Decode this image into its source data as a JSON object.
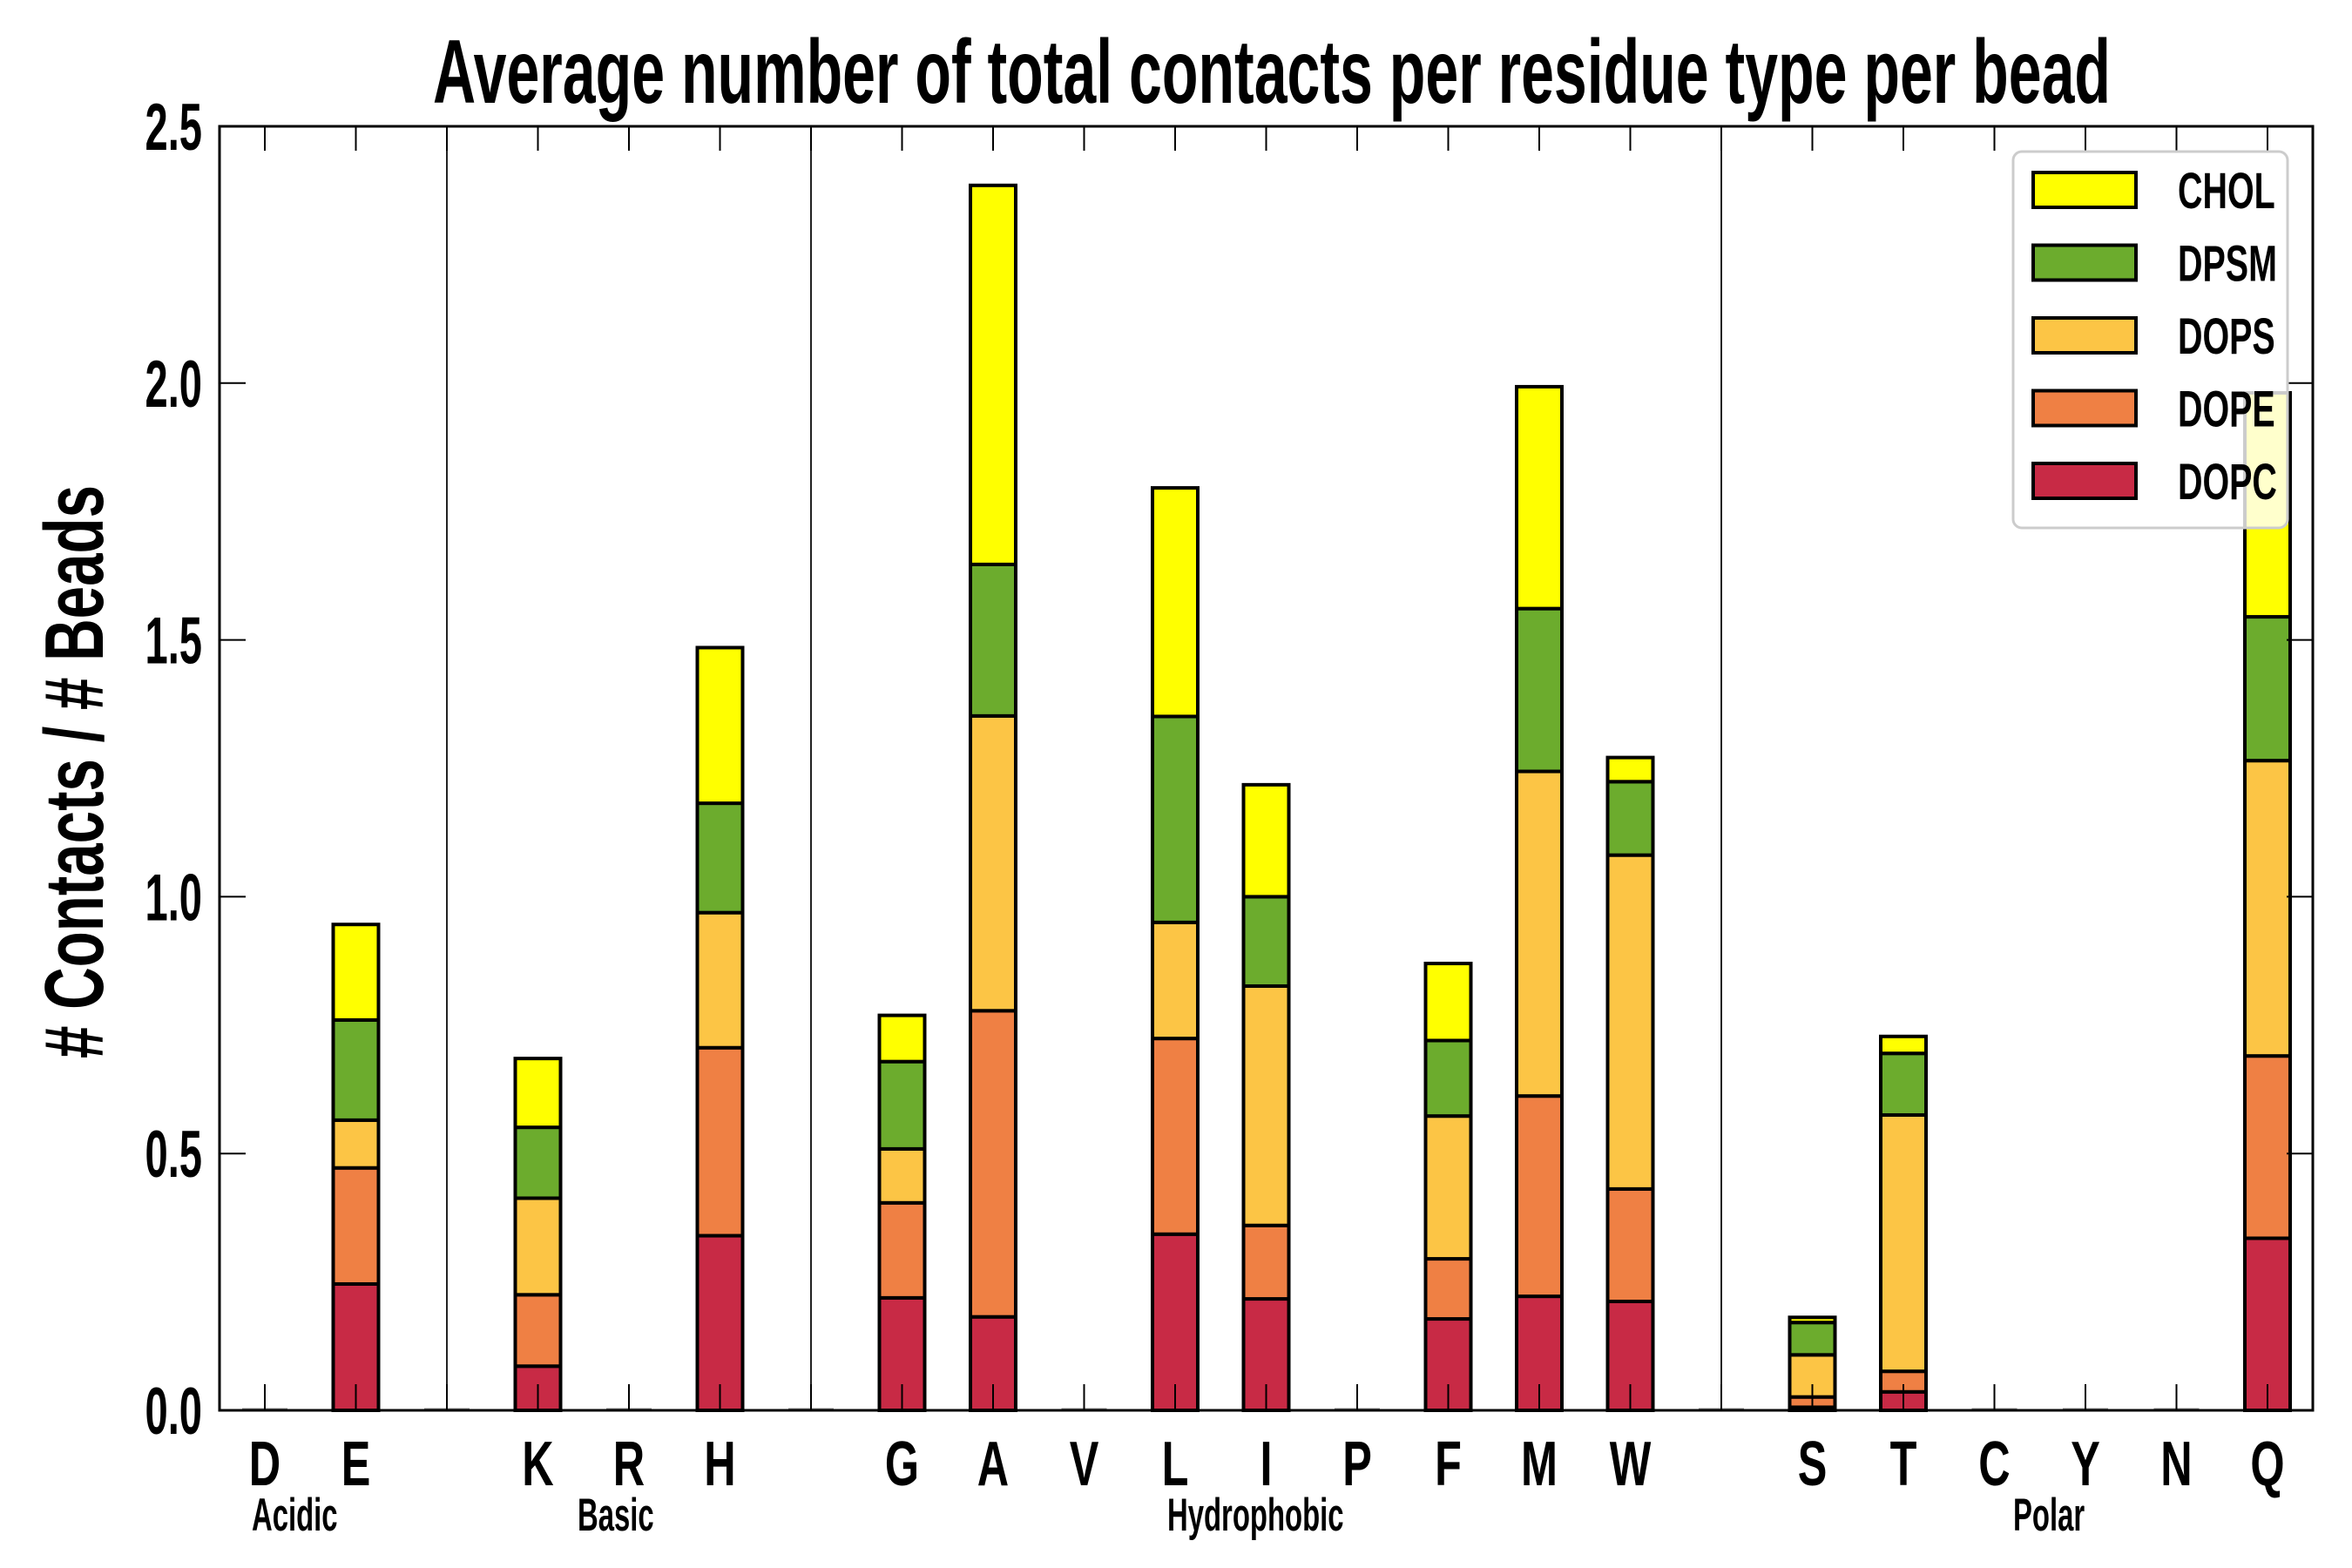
{
  "chart_data": {
    "type": "bar",
    "stacked": true,
    "title": "Average number of total contacts per residue type per bead",
    "xlabel": "",
    "ylabel": "# Contacts / # Beads",
    "ylim": [
      0,
      2.5
    ],
    "yticks": [
      "0.0",
      "0.5",
      "1.0",
      "1.5",
      "2.0",
      "2.5"
    ],
    "ytick_values": [
      0,
      0.5,
      1.0,
      1.5,
      2.0,
      2.5
    ],
    "grid": false,
    "legend_position": "top-right",
    "categories": [
      "D",
      "E",
      "K",
      "R",
      "H",
      "G",
      "A",
      "V",
      "L",
      "I",
      "P",
      "F",
      "M",
      "W",
      "S",
      "T",
      "C",
      "Y",
      "N",
      "Q"
    ],
    "groups": [
      {
        "name": "Acidic",
        "members": [
          "D",
          "E"
        ]
      },
      {
        "name": "Basic",
        "members": [
          "K",
          "R",
          "H"
        ]
      },
      {
        "name": "Hydrophobic",
        "members": [
          "G",
          "A",
          "V",
          "L",
          "I",
          "P",
          "F",
          "M",
          "W"
        ]
      },
      {
        "name": "Polar",
        "members": [
          "S",
          "T",
          "C",
          "Y",
          "N",
          "Q"
        ]
      }
    ],
    "series": [
      {
        "name": "DOPC",
        "color": "#C82A45",
        "values": [
          0,
          0.246,
          0.086,
          0,
          0.34,
          0.219,
          0.182,
          0,
          0.343,
          0.217,
          0,
          0.178,
          0.222,
          0.212,
          0.006,
          0.036,
          0,
          0,
          0,
          0.335
        ]
      },
      {
        "name": "DOPE",
        "color": "#EF8044",
        "values": [
          0,
          0.226,
          0.139,
          0,
          0.366,
          0.185,
          0.596,
          0,
          0.381,
          0.143,
          0,
          0.117,
          0.39,
          0.219,
          0.02,
          0.04,
          0,
          0,
          0,
          0.355
        ]
      },
      {
        "name": "DOPS",
        "color": "#FCC545",
        "values": [
          0,
          0.093,
          0.188,
          0,
          0.263,
          0.105,
          0.574,
          0,
          0.226,
          0.466,
          0,
          0.278,
          0.632,
          0.65,
          0.082,
          0.499,
          0,
          0,
          0,
          0.575
        ]
      },
      {
        "name": "DPSM",
        "color": "#6CAC2D",
        "values": [
          0,
          0.195,
          0.138,
          0,
          0.213,
          0.17,
          0.295,
          0,
          0.401,
          0.174,
          0,
          0.147,
          0.317,
          0.143,
          0.063,
          0.12,
          0,
          0,
          0,
          0.28
        ]
      },
      {
        "name": "CHOL",
        "color": "#FFFF00",
        "values": [
          0,
          0.186,
          0.134,
          0,
          0.303,
          0.09,
          0.738,
          0,
          0.445,
          0.218,
          0,
          0.15,
          0.432,
          0.047,
          0.01,
          0.033,
          0,
          0,
          0,
          0.436
        ]
      }
    ],
    "legend": [
      "CHOL",
      "DPSM",
      "DOPS",
      "DOPE",
      "DOPC"
    ]
  }
}
